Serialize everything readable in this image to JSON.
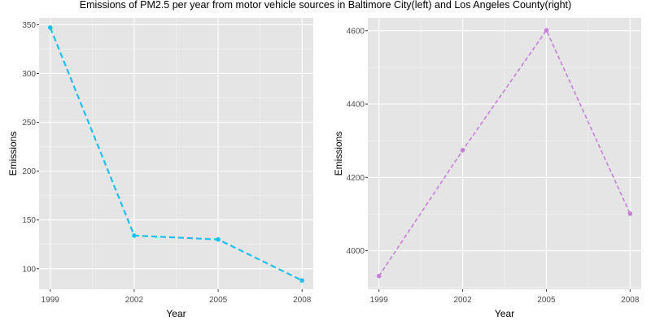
{
  "title": "Emissions of PM2.5 per year from motor vehicle sources in Baltimore City(left) and  Los Angeles County(right)",
  "chart_data": [
    {
      "type": "line",
      "xlabel": "Year",
      "ylabel": "Emissions",
      "x": [
        1999,
        2002,
        2005,
        2008
      ],
      "xticks": [
        1999,
        2002,
        2005,
        2008
      ],
      "xlim": [
        1998.6,
        2008.4
      ],
      "yticks": [
        100,
        150,
        200,
        250,
        300,
        350
      ],
      "ylim": [
        79,
        357
      ],
      "grid": true,
      "color": "#1ebfee",
      "series": [
        {
          "values": [
            347,
            134,
            130,
            88
          ]
        }
      ]
    },
    {
      "type": "line",
      "xlabel": "Year",
      "ylabel": "Emissions",
      "x": [
        1999,
        2002,
        2005,
        2008
      ],
      "xticks": [
        1999,
        2002,
        2005,
        2008
      ],
      "xlim": [
        1998.6,
        2008.4
      ],
      "yticks": [
        4000,
        4200,
        4400,
        4600
      ],
      "ylim": [
        3895,
        4635
      ],
      "grid": true,
      "color": "#c77fd8",
      "series": [
        {
          "values": [
            3931,
            4274,
            4601,
            4101
          ]
        }
      ]
    }
  ]
}
